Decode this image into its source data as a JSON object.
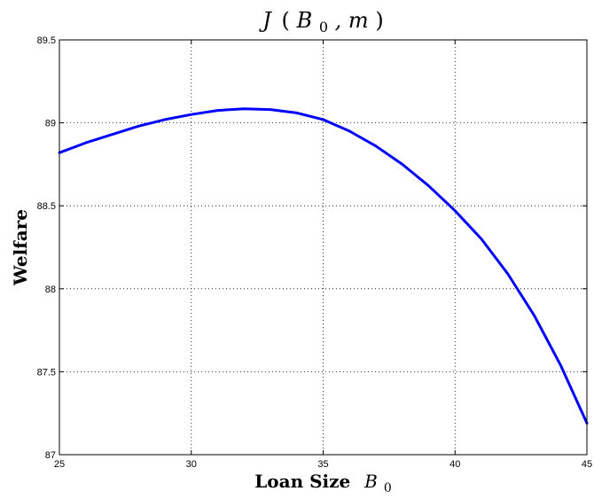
{
  "chart_data": {
    "type": "line",
    "title": "J (B0, m)",
    "title_parts": {
      "func": "J",
      "open": "(",
      "var": "B",
      "sub": "0",
      "rest": ", m",
      "close": ")"
    },
    "xlabel": "Loan Size B0",
    "xlabel_parts": {
      "text": "Loan Size ",
      "var": "B",
      "sub": "0"
    },
    "ylabel": "Welfare",
    "xlim": [
      25,
      45
    ],
    "ylim": [
      87,
      89.5
    ],
    "xticks": [
      25,
      30,
      35,
      40,
      45
    ],
    "yticks": [
      87,
      87.5,
      88,
      88.5,
      89,
      89.5
    ],
    "xtick_labels": [
      "25",
      "30",
      "35",
      "40",
      "45"
    ],
    "ytick_labels": [
      "87",
      "87.5",
      "88",
      "88.5",
      "89",
      "89.5"
    ],
    "grid": true,
    "series": [
      {
        "color": "#0000ff",
        "x": [
          25,
          26,
          27,
          28,
          29,
          30,
          31,
          32,
          33,
          34,
          35,
          36,
          37,
          38,
          39,
          40,
          41,
          42,
          43,
          44,
          45
        ],
        "y": [
          88.82,
          88.88,
          88.93,
          88.98,
          89.02,
          89.05,
          89.075,
          89.085,
          89.08,
          89.06,
          89.02,
          88.95,
          88.86,
          88.75,
          88.62,
          88.47,
          88.3,
          88.09,
          87.84,
          87.54,
          87.19
        ]
      }
    ]
  }
}
